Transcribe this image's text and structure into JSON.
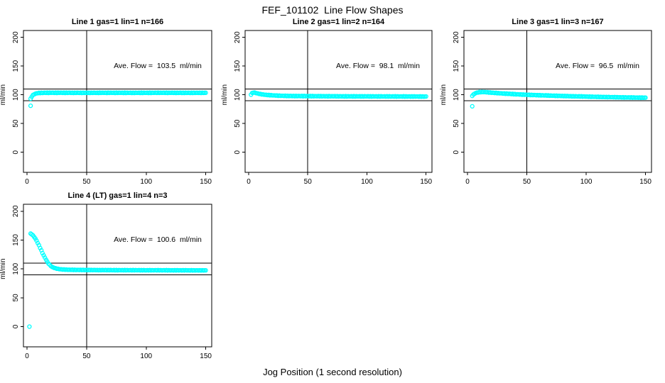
{
  "page": {
    "title": "FEF_101102  Line Flow Shapes",
    "xlabel": "Jog Position (1 second resolution)",
    "background": "#ffffff",
    "axis_color": "#000000",
    "marker_color": "#00ffff"
  },
  "chart_data": [
    {
      "type": "scatter",
      "title": "Line 1 gas=1 lin=1 n=166",
      "annotation": "Ave. Flow =  103.5  ml/min",
      "n": 166,
      "ave_flow_ml_min": 103.5,
      "ylabel": "ml/min",
      "x_ticks": [
        0,
        50,
        100,
        150
      ],
      "y_ticks": [
        0,
        50,
        100,
        150,
        200
      ],
      "xlim": [
        -3,
        155
      ],
      "ylim": [
        -35,
        212
      ],
      "ref_lines_h": [
        90,
        110
      ],
      "ref_line_v": 50,
      "point_step": 1,
      "jitter": 0.5,
      "outliers": [
        [
          3,
          81
        ]
      ],
      "trend": [
        [
          3,
          93
        ],
        [
          4,
          97
        ],
        [
          5,
          99.5
        ],
        [
          6,
          101
        ],
        [
          7,
          102
        ],
        [
          8,
          102.6
        ],
        [
          10,
          103.2
        ],
        [
          14,
          103.5
        ],
        [
          20,
          103.6
        ],
        [
          30,
          103.6
        ],
        [
          50,
          103.5
        ],
        [
          70,
          103.6
        ],
        [
          90,
          103.5
        ],
        [
          110,
          103.6
        ],
        [
          130,
          103.5
        ],
        [
          150,
          103.5
        ]
      ]
    },
    {
      "type": "scatter",
      "title": "Line 2 gas=1 lin=2 n=164",
      "annotation": "Ave. Flow =  98.1  ml/min",
      "n": 164,
      "ave_flow_ml_min": 98.1,
      "ylabel": "ml/min",
      "x_ticks": [
        0,
        50,
        100,
        150
      ],
      "y_ticks": [
        0,
        50,
        100,
        150,
        200
      ],
      "xlim": [
        -3,
        155
      ],
      "ylim": [
        -35,
        212
      ],
      "ref_lines_h": [
        90,
        110
      ],
      "ref_line_v": 50,
      "point_step": 1,
      "jitter": 0.5,
      "outliers": [],
      "trend": [
        [
          2,
          100.5
        ],
        [
          3,
          103
        ],
        [
          4,
          104
        ],
        [
          5,
          103.8
        ],
        [
          6,
          103.2
        ],
        [
          8,
          102.2
        ],
        [
          10,
          101.3
        ],
        [
          12,
          100.6
        ],
        [
          15,
          99.9
        ],
        [
          18,
          99.4
        ],
        [
          21,
          99
        ],
        [
          25,
          98.6
        ],
        [
          30,
          98.2
        ],
        [
          35,
          98
        ],
        [
          40,
          97.9
        ],
        [
          50,
          97.7
        ],
        [
          60,
          97.6
        ],
        [
          70,
          97.5
        ],
        [
          80,
          97.4
        ],
        [
          100,
          97.3
        ],
        [
          120,
          97.2
        ],
        [
          150,
          97
        ]
      ]
    },
    {
      "type": "scatter",
      "title": "Line 3 gas=1 lin=3 n=167",
      "annotation": "Ave. Flow =  96.5  ml/min",
      "n": 167,
      "ave_flow_ml_min": 96.5,
      "ylabel": "ml/min",
      "x_ticks": [
        0,
        50,
        100,
        150
      ],
      "y_ticks": [
        0,
        50,
        100,
        150,
        200
      ],
      "xlim": [
        -3,
        155
      ],
      "ylim": [
        -35,
        212
      ],
      "ref_lines_h": [
        90,
        110
      ],
      "ref_line_v": 50,
      "point_step": 1,
      "jitter": 0.5,
      "outliers": [
        [
          4,
          80
        ]
      ],
      "trend": [
        [
          4,
          98.5
        ],
        [
          5,
          100.5
        ],
        [
          6,
          102
        ],
        [
          7,
          103
        ],
        [
          8,
          103.8
        ],
        [
          10,
          104.6
        ],
        [
          12,
          104.9
        ],
        [
          14,
          104.8
        ],
        [
          16,
          104.5
        ],
        [
          18,
          104.2
        ],
        [
          20,
          103.8
        ],
        [
          24,
          103.2
        ],
        [
          28,
          102.6
        ],
        [
          32,
          102.1
        ],
        [
          36,
          101.6
        ],
        [
          40,
          101.1
        ],
        [
          45,
          100.6
        ],
        [
          50,
          100.1
        ],
        [
          55,
          99.7
        ],
        [
          60,
          99.3
        ],
        [
          65,
          99
        ],
        [
          70,
          98.6
        ],
        [
          75,
          98.3
        ],
        [
          80,
          98
        ],
        [
          85,
          97.7
        ],
        [
          90,
          97.4
        ],
        [
          95,
          97.2
        ],
        [
          100,
          96.9
        ],
        [
          110,
          96.4
        ],
        [
          120,
          96
        ],
        [
          130,
          95.6
        ],
        [
          140,
          95.2
        ],
        [
          150,
          95
        ]
      ]
    },
    {
      "type": "scatter",
      "title": "Line 4 (LT) gas=1 lin=4 n=3",
      "annotation": "Ave. Flow =  100.6  ml/min",
      "n": 3,
      "ave_flow_ml_min": 100.6,
      "ylabel": "ml/min",
      "x_ticks": [
        0,
        50,
        100,
        150
      ],
      "y_ticks": [
        0,
        50,
        100,
        150,
        200
      ],
      "xlim": [
        -3,
        155
      ],
      "ylim": [
        -35,
        212
      ],
      "ref_lines_h": [
        90,
        110
      ],
      "ref_line_v": 50,
      "point_step": 1,
      "jitter": 0.4,
      "outliers": [
        [
          2,
          0
        ]
      ],
      "trend": [
        [
          3,
          161
        ],
        [
          4,
          160
        ],
        [
          5,
          158
        ],
        [
          6,
          155.5
        ],
        [
          7,
          152.5
        ],
        [
          8,
          149
        ],
        [
          9,
          145
        ],
        [
          10,
          141
        ],
        [
          11,
          136.5
        ],
        [
          12,
          132
        ],
        [
          13,
          127.5
        ],
        [
          14,
          123.5
        ],
        [
          15,
          119.5
        ],
        [
          16,
          116
        ],
        [
          17,
          112.5
        ],
        [
          18,
          109.5
        ],
        [
          19,
          107
        ],
        [
          20,
          105
        ],
        [
          21,
          103.5
        ],
        [
          22,
          102.5
        ],
        [
          23,
          101.7
        ],
        [
          24,
          101
        ],
        [
          25,
          100.4
        ],
        [
          26,
          100
        ],
        [
          28,
          99.4
        ],
        [
          30,
          99
        ],
        [
          33,
          98.7
        ],
        [
          36,
          98.5
        ],
        [
          40,
          98.3
        ],
        [
          45,
          98.2
        ],
        [
          50,
          98.1
        ],
        [
          60,
          98
        ],
        [
          70,
          97.9
        ],
        [
          80,
          97.8
        ],
        [
          90,
          97.8
        ],
        [
          100,
          97.7
        ],
        [
          110,
          97.7
        ],
        [
          120,
          97.6
        ],
        [
          130,
          97.6
        ],
        [
          140,
          97.5
        ],
        [
          150,
          97.5
        ]
      ]
    }
  ]
}
